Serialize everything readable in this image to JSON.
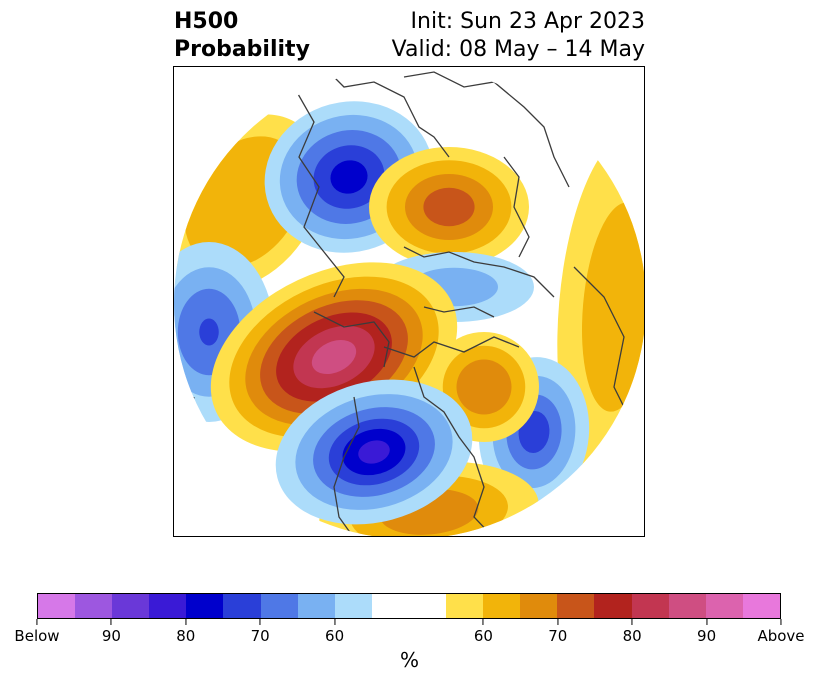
{
  "title": {
    "left_line1": "H500",
    "left_line2": "Probability",
    "right_line1": "Init: Sun 23 Apr 2023",
    "right_line2": "Valid: 08 May – 14 May"
  },
  "colorbar": {
    "colors": [
      "#d678e8",
      "#9d57e0",
      "#6a38d8",
      "#3a1ad6",
      "#0000cc",
      "#2a3fd8",
      "#4f78e6",
      "#79b1f2",
      "#acdcfa",
      "#ffffff",
      "#ffffff",
      "#ffe04a",
      "#f2b40a",
      "#e08b0c",
      "#c8551a",
      "#b2231e",
      "#c23651",
      "#cf4e82",
      "#dc63ae",
      "#e878dc"
    ],
    "tick_labels": [
      "Below",
      "90",
      "80",
      "70",
      "60",
      "60",
      "70",
      "80",
      "90",
      "Above"
    ],
    "unit_label": "%"
  },
  "map": {
    "colors": {
      "below_60": "#acdcfa",
      "below_65": "#79b1f2",
      "below_70": "#4f78e6",
      "below_75": "#2a3fd8",
      "below_80": "#0000cc",
      "below_85": "#3a1ad6",
      "above_55": "#ffe04a",
      "above_60": "#f2b40a",
      "above_65": "#e08b0c",
      "above_70": "#c8551a",
      "above_75": "#b2231e",
      "above_80": "#c23651",
      "above_85": "#cf4e82",
      "coast": "#3c3c3c"
    }
  }
}
